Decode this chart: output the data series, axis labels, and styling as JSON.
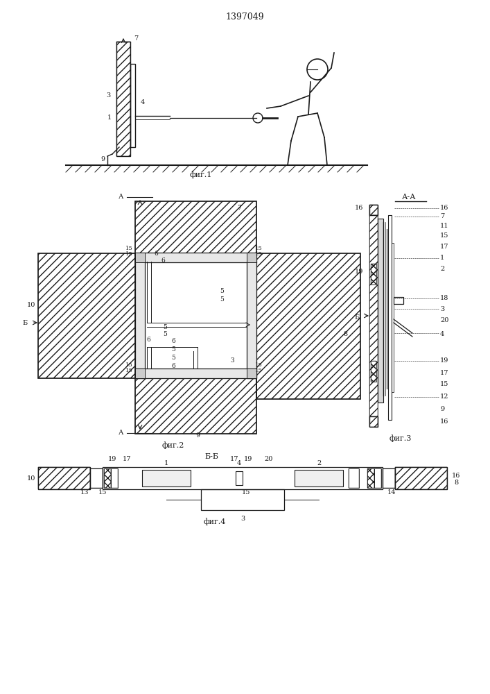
{
  "title": "1397049",
  "bg_color": "#ffffff",
  "line_color": "#1a1a1a",
  "fig1_caption": "фиг.1",
  "fig2_caption": "фиг.2",
  "fig3_caption": "фиг.3",
  "fig4_caption": "фиг.4"
}
